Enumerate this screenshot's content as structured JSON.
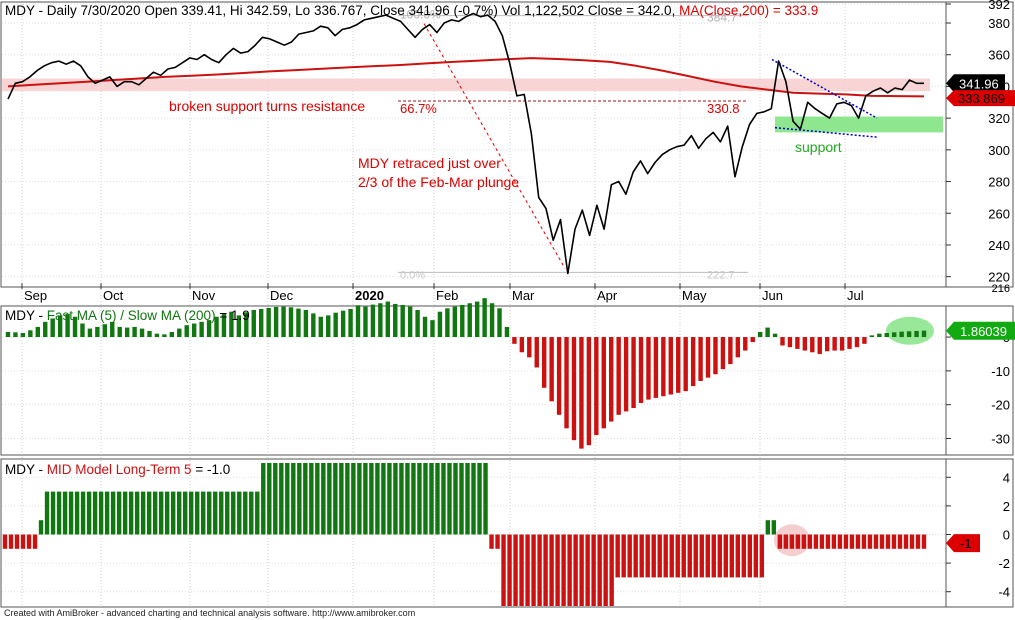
{
  "chart_data": [
    {
      "type": "line",
      "title": "MDY - Daily 7/30/2020 Open 339.41, Hi 342.59, Lo 336.767, Close 341.96 (-0.7%) Vol 1,122,502 Close = 342.0,",
      "title_ma": "MA(Close,200) = 333.9",
      "months": [
        "Sep",
        "Oct",
        "Nov",
        "Dec",
        "2020",
        "Feb",
        "Mar",
        "Apr",
        "May",
        "Jun",
        "Jul"
      ],
      "ylim": [
        216,
        392
      ],
      "yticks": [
        220,
        240,
        260,
        280,
        300,
        320,
        340,
        360,
        380,
        392
      ],
      "extra_tick": "216",
      "series": [
        {
          "name": "Close",
          "color": "#000000",
          "values": [
            332,
            342,
            343,
            346,
            350,
            353,
            355,
            356,
            354,
            356,
            353,
            346,
            342,
            344,
            346,
            340,
            343,
            343,
            341,
            345,
            349,
            347,
            351,
            352,
            355,
            358,
            357,
            360,
            357,
            355,
            360,
            364,
            361,
            362,
            366,
            371,
            370,
            368,
            366,
            368,
            373,
            374,
            375,
            378,
            377,
            372,
            376,
            377,
            379,
            382,
            383,
            384,
            385,
            383,
            381,
            376,
            371,
            376,
            379,
            374,
            380,
            382,
            381,
            384,
            386,
            384,
            385,
            381,
            372,
            355,
            334,
            335,
            310,
            270,
            263,
            243,
            256,
            222,
            250,
            262,
            246,
            265,
            250,
            278,
            280,
            272,
            286,
            293,
            285,
            292,
            297,
            300,
            302,
            303,
            309,
            301,
            307,
            311,
            305,
            315,
            283,
            302,
            316,
            323,
            324,
            326,
            356,
            343,
            318,
            313,
            330,
            326,
            323,
            320,
            329,
            330,
            328,
            320,
            334,
            337,
            339,
            336,
            339,
            338,
            344,
            342,
            342
          ]
        },
        {
          "name": "MA(Close,200)",
          "color": "#cc1111",
          "values": [
            340,
            341,
            342,
            343,
            344,
            345,
            346,
            346.8,
            347.5,
            348.5,
            349.5,
            350.3,
            351.2,
            352,
            352.8,
            353.5,
            354.5,
            355.5,
            356.3,
            357.2,
            357.9,
            357.3,
            356.5,
            355.5,
            353,
            350,
            346.5,
            343,
            340,
            338,
            336,
            335.5,
            335,
            334,
            333.9,
            333.7
          ]
        }
      ],
      "resistance_band": [
        337,
        345
      ],
      "fib": {
        "top_label": "100.0%",
        "top_value": "384.7",
        "mid_label": "66.7%",
        "mid_value": "330.8",
        "bottom_label": "0.0%",
        "bottom_value": "222.7",
        "top": 384.7,
        "mid": 330.8,
        "bottom": 222.7
      },
      "support_zone": [
        311,
        321
      ],
      "last_close_label": "341.96",
      "ma_label": "333.869",
      "annotations": {
        "resistance": "broken support turns resistance",
        "retrace_line1": "MDY retraced just over",
        "retrace_line2": "2/3 of the Feb-Mar plunge",
        "support": "support"
      },
      "colors": {
        "price": "#000000",
        "ma": "#cc1111",
        "band": "#f7c9c9",
        "support": "#8ee68e",
        "support_text": "#22aa22",
        "trendline": "#0000cc",
        "annotation": "#dd0000"
      }
    },
    {
      "type": "bar",
      "title": "MDY - Fast MA (5) / Slow MA (200) = 1.9",
      "ylim": [
        -34,
        8
      ],
      "yticks": [
        0,
        -10,
        -20,
        -30
      ],
      "last_label": "1.86039",
      "values": [
        1.5,
        1.4,
        1.2,
        2.0,
        3.0,
        4.5,
        5.5,
        6.4,
        6.8,
        6.0,
        4.0,
        2.5,
        3.0,
        3.8,
        4.5,
        3.0,
        2.8,
        3.0,
        2.5,
        1.8,
        1.0,
        0.8,
        1.5,
        2.5,
        3.5,
        4.0,
        4.5,
        5.0,
        6.0,
        6.8,
        7.5,
        6.4,
        7.3,
        8.0,
        8.3,
        8.6,
        8.9,
        9.0,
        8.8,
        8.4,
        8.0,
        7.0,
        6.0,
        6.4,
        7.2,
        7.8,
        8.3,
        9.4,
        9.0,
        9.6,
        10.0,
        10.5,
        9.8,
        9.5,
        9.0,
        8.0,
        6.0,
        5.0,
        7.5,
        8.5,
        9.0,
        9.5,
        10.0,
        10.5,
        11.5,
        10.0,
        8.5,
        3.0,
        -2.0,
        -4.5,
        -6.0,
        -9.0,
        -15.0,
        -19.0,
        -23.0,
        -27.0,
        -30.5,
        -33.0,
        -32.0,
        -29.0,
        -27.0,
        -25.0,
        -23.0,
        -22.0,
        -21.0,
        -19.5,
        -18.5,
        -18.0,
        -17.5,
        -17.0,
        -16.5,
        -16.0,
        -14.5,
        -13.0,
        -12.0,
        -11.0,
        -9.5,
        -8.0,
        -6.0,
        -4.0,
        -1.5,
        1.5,
        2.8,
        1.0,
        -2.5,
        -3.0,
        -3.5,
        -4.0,
        -4.5,
        -5.0,
        -4.2,
        -4.0,
        -4.0,
        -3.5,
        -3.0,
        -2.0,
        0.5,
        1.0,
        1.2,
        1.4,
        1.6,
        1.7,
        1.8,
        1.9
      ],
      "colors": {
        "up": "#117711",
        "down": "#cc1111",
        "highlight": "#8ee68e"
      }
    },
    {
      "type": "bar",
      "title": "MDY - MID Model Long-Term 5 = -1.0",
      "ylim": [
        -5,
        5
      ],
      "yticks": [
        4,
        2,
        0,
        -2,
        -4
      ],
      "last_label": "-1",
      "segments": [
        {
          "value": -1,
          "bars": 6
        },
        {
          "value": 1,
          "bars": 1
        },
        {
          "value": 3,
          "bars": 36
        },
        {
          "value": 5,
          "bars": 38
        },
        {
          "value": -1,
          "bars": 2
        },
        {
          "value": -5,
          "bars": 19
        },
        {
          "value": -3,
          "bars": 25
        },
        {
          "value": 1,
          "bars": 2
        },
        {
          "value": -1,
          "bars": 25
        }
      ],
      "colors": {
        "up": "#117711",
        "down": "#cc1111",
        "highlight": "#f3caca"
      }
    }
  ],
  "footer": "Created with AmiBroker - advanced charting and technical analysis software. http://www.amibroker.com"
}
